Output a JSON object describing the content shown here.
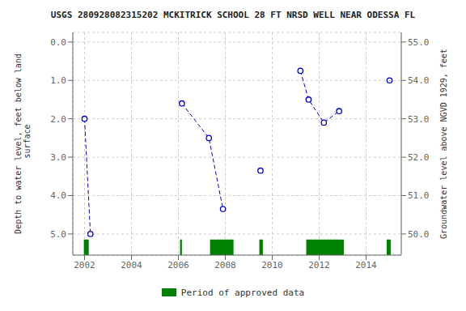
{
  "chart_data": {
    "type": "line",
    "title": "USGS 280928082315202 MCKITRICK SCHOOL 28 FT NRSD WELL NEAR ODESSA FL",
    "ylabel": "Depth to water level, feet below land\n surface",
    "y2label": "Groundwater level above NGVD 1929, feet",
    "xlim": [
      2001.5,
      2015.5
    ],
    "xticks": [
      2002,
      2004,
      2006,
      2008,
      2010,
      2012,
      2014
    ],
    "ylim": [
      5.55,
      -0.25
    ],
    "yticks": [
      {
        "value": 0.0,
        "label": "0.0"
      },
      {
        "value": 1.0,
        "label": "1.0"
      },
      {
        "value": 2.0,
        "label": "2.0"
      },
      {
        "value": 3.0,
        "label": "3.0"
      },
      {
        "value": 4.0,
        "label": "4.0"
      },
      {
        "value": 5.0,
        "label": "5.0"
      }
    ],
    "y2lim": [
      49.45,
      55.25
    ],
    "y2ticks": [
      {
        "value": 55.0,
        "label": "55.0"
      },
      {
        "value": 54.0,
        "label": "54.0"
      },
      {
        "value": 53.0,
        "label": "53.0"
      },
      {
        "value": 52.0,
        "label": "52.0"
      },
      {
        "value": 51.0,
        "label": "51.0"
      },
      {
        "value": 50.0,
        "label": "50.0"
      }
    ],
    "grid": true,
    "series": [
      {
        "x": [
          2002.0,
          2002.25
        ],
        "values": [
          2.0,
          5.0
        ],
        "color": "#0000cc",
        "line_style": "dashed",
        "marker": "o"
      },
      {
        "x": [
          2006.15,
          2007.3,
          2007.9
        ],
        "values": [
          1.6,
          2.5,
          4.35
        ],
        "color": "#0000cc",
        "line_style": "dashed",
        "marker": "o"
      },
      {
        "x": [
          2011.2,
          2011.55,
          2012.2,
          2012.85
        ],
        "values": [
          0.75,
          1.5,
          2.1,
          1.8
        ],
        "color": "#0000cc",
        "line_style": "dashed",
        "marker": "o"
      },
      {
        "type": "scatter",
        "x": [
          2009.5,
          2015.0
        ],
        "values": [
          3.35,
          1.0
        ],
        "color": "#0000cc",
        "marker": "o"
      }
    ],
    "approved_periods": {
      "name": "Period of approved data",
      "color": "#008000",
      "ranges": [
        [
          2001.97,
          2002.18
        ],
        [
          2006.07,
          2006.15
        ],
        [
          2007.35,
          2008.35
        ],
        [
          2009.45,
          2009.6
        ],
        [
          2011.45,
          2013.05
        ],
        [
          2014.88,
          2015.05
        ]
      ]
    },
    "legend": "bottom"
  }
}
